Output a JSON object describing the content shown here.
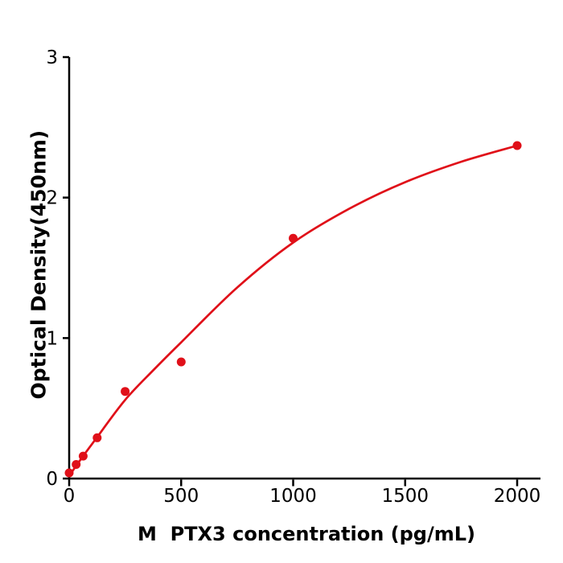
{
  "figure": {
    "background": "#ffffff"
  },
  "chart_data": {
    "type": "scatter",
    "title": "",
    "xlabel": "M  PTX3 concentration (pg/mL)",
    "ylabel": "Optical Density(450nm)",
    "xlim": [
      0,
      2105
    ],
    "ylim": [
      0,
      3
    ],
    "xticks": [
      0,
      500,
      1000,
      1500,
      2000
    ],
    "yticks": [
      0,
      1,
      2,
      3
    ],
    "grid": false,
    "legend": "none",
    "series": [
      {
        "name": "standard-curve-points",
        "style": "scatter",
        "points": [
          [
            0,
            0.04
          ],
          [
            31.2,
            0.1
          ],
          [
            62.5,
            0.16
          ],
          [
            125,
            0.29
          ],
          [
            250,
            0.62
          ],
          [
            500,
            0.83
          ],
          [
            1000,
            1.71
          ],
          [
            2000,
            2.37
          ]
        ]
      },
      {
        "name": "fitted-curve",
        "style": "line",
        "points": [
          [
            0,
            0.02
          ],
          [
            60,
            0.155
          ],
          [
            125,
            0.295
          ],
          [
            250,
            0.56
          ],
          [
            375,
            0.77
          ],
          [
            500,
            0.97
          ],
          [
            750,
            1.36
          ],
          [
            1000,
            1.68
          ],
          [
            1250,
            1.92
          ],
          [
            1500,
            2.11
          ],
          [
            1750,
            2.255
          ],
          [
            2000,
            2.37
          ]
        ]
      }
    ],
    "colors": {
      "series": "#e01019",
      "axis": "#000000",
      "tick_label": "#000000"
    }
  }
}
